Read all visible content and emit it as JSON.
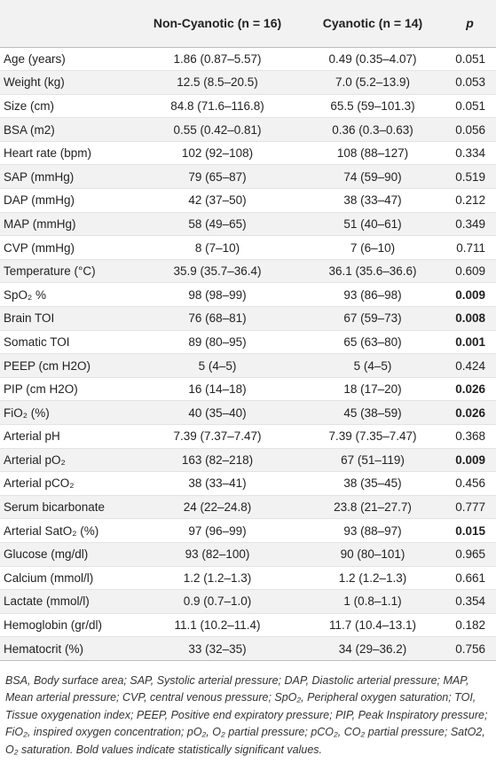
{
  "table": {
    "headers": {
      "label": "",
      "non_cyanotic": "Non-Cyanotic (n = 16)",
      "cyanotic": "Cyanotic (n = 14)",
      "p": "p"
    },
    "rows": [
      {
        "label": "Age (years)",
        "non_cyanotic": "1.86 (0.87–5.57)",
        "cyanotic": "0.49 (0.35–4.07)",
        "p": "0.051",
        "significant": false
      },
      {
        "label": "Weight (kg)",
        "non_cyanotic": "12.5 (8.5–20.5)",
        "cyanotic": "7.0 (5.2–13.9)",
        "p": "0.053",
        "significant": false
      },
      {
        "label": "Size (cm)",
        "non_cyanotic": "84.8 (71.6–116.8)",
        "cyanotic": "65.5 (59–101.3)",
        "p": "0.051",
        "significant": false
      },
      {
        "label": "BSA (m2)",
        "non_cyanotic": "0.55 (0.42–0.81)",
        "cyanotic": "0.36 (0.3–0.63)",
        "p": "0.056",
        "significant": false
      },
      {
        "label": "Heart rate (bpm)",
        "non_cyanotic": "102 (92–108)",
        "cyanotic": "108 (88–127)",
        "p": "0.334",
        "significant": false
      },
      {
        "label": "SAP (mmHg)",
        "non_cyanotic": "79 (65–87)",
        "cyanotic": "74 (59–90)",
        "p": "0.519",
        "significant": false
      },
      {
        "label": "DAP (mmHg)",
        "non_cyanotic": "42 (37–50)",
        "cyanotic": "38 (33–47)",
        "p": "0.212",
        "significant": false
      },
      {
        "label": "MAP (mmHg)",
        "non_cyanotic": "58 (49–65)",
        "cyanotic": "51 (40–61)",
        "p": "0.349",
        "significant": false
      },
      {
        "label": "CVP (mmHg)",
        "non_cyanotic": "8 (7–10)",
        "cyanotic": "7 (6–10)",
        "p": "0.711",
        "significant": false
      },
      {
        "label": "Temperature (°C)",
        "non_cyanotic": "35.9 (35.7–36.4)",
        "cyanotic": "36.1 (35.6–36.6)",
        "p": "0.609",
        "significant": false
      },
      {
        "label": "SpO₂ %",
        "non_cyanotic": "98 (98–99)",
        "cyanotic": "93 (86–98)",
        "p": "0.009",
        "significant": true
      },
      {
        "label": "Brain TOI",
        "non_cyanotic": "76 (68–81)",
        "cyanotic": "67 (59–73)",
        "p": "0.008",
        "significant": true
      },
      {
        "label": "Somatic TOI",
        "non_cyanotic": "89 (80–95)",
        "cyanotic": "65 (63–80)",
        "p": "0.001",
        "significant": true
      },
      {
        "label": "PEEP (cm H2O)",
        "non_cyanotic": "5 (4–5)",
        "cyanotic": "5 (4–5)",
        "p": "0.424",
        "significant": false
      },
      {
        "label": "PIP (cm H2O)",
        "non_cyanotic": "16 (14–18)",
        "cyanotic": "18 (17–20)",
        "p": "0.026",
        "significant": true
      },
      {
        "label": "FiO₂ (%)",
        "non_cyanotic": "40 (35–40)",
        "cyanotic": "45 (38–59)",
        "p": "0.026",
        "significant": true
      },
      {
        "label": "Arterial pH",
        "non_cyanotic": "7.39 (7.37–7.47)",
        "cyanotic": "7.39 (7.35–7.47)",
        "p": "0.368",
        "significant": false
      },
      {
        "label": "Arterial pO₂",
        "non_cyanotic": "163 (82–218)",
        "cyanotic": "67 (51–119)",
        "p": "0.009",
        "significant": true
      },
      {
        "label": "Arterial pCO₂",
        "non_cyanotic": "38 (33–41)",
        "cyanotic": "38 (35–45)",
        "p": "0.456",
        "significant": false
      },
      {
        "label": "Serum bicarbonate",
        "non_cyanotic": "24 (22–24.8)",
        "cyanotic": "23.8 (21–27.7)",
        "p": "0.777",
        "significant": false
      },
      {
        "label": "Arterial SatO₂ (%)",
        "non_cyanotic": "97 (96–99)",
        "cyanotic": "93 (88–97)",
        "p": "0.015",
        "significant": true
      },
      {
        "label": "Glucose (mg/dl)",
        "non_cyanotic": "93 (82–100)",
        "cyanotic": "90 (80–101)",
        "p": "0.965",
        "significant": false
      },
      {
        "label": "Calcium (mmol/l)",
        "non_cyanotic": "1.2 (1.2–1.3)",
        "cyanotic": "1.2 (1.2–1.3)",
        "p": "0.661",
        "significant": false
      },
      {
        "label": "Lactate (mmol/l)",
        "non_cyanotic": "0.9 (0.7–1.0)",
        "cyanotic": "1 (0.8–1.1)",
        "p": "0.354",
        "significant": false
      },
      {
        "label": "Hemoglobin (gr/dl)",
        "non_cyanotic": "11.1 (10.2–11.4)",
        "cyanotic": "11.7 (10.4–13.1)",
        "p": "0.182",
        "significant": false
      },
      {
        "label": "Hematocrit (%)",
        "non_cyanotic": "33 (32–35)",
        "cyanotic": "34 (29–36.2)",
        "p": "0.756",
        "significant": false
      }
    ]
  },
  "footnote": "BSA, Body surface area; SAP, Systolic arterial pressure; DAP, Diastolic arterial pressure; MAP, Mean arterial pressure; CVP, central venous pressure; SpO₂, Peripheral oxygen saturation; TOI, Tissue oxygenation index; PEEP, Positive end expiratory pressure; PIP, Peak Inspiratory pressure; FiO₂, inspired oxygen concentration; pO₂, O₂ partial pressure; pCO₂, CO₂ partial pressure; SatO2, O₂ saturation. Bold values indicate statistically significant values."
}
